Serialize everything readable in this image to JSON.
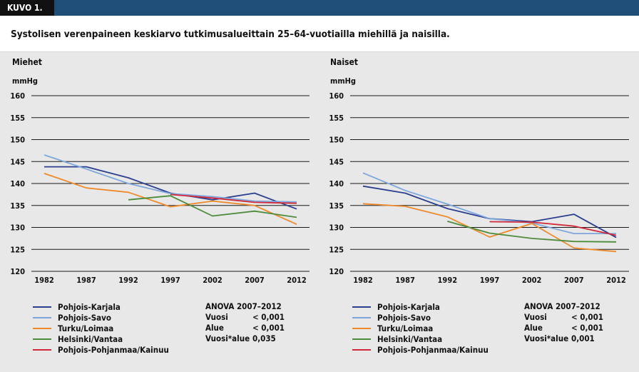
{
  "header": {
    "tag": "KUVO 1.",
    "title": "Systolisen verenpaineen keskiarvo tutkimusalueittain 25–64-vuotiailla miehillä ja naisilla."
  },
  "colors": {
    "header_bar": "#1f4e79",
    "panel_bg": "#e8e8e8",
    "Pohjois-Karjala": "#2b3f8f",
    "Pohjois-Savo": "#7ea6dc",
    "Turku/Loimaa": "#ef8a2b",
    "Helsinki/Vantaa": "#4d8c3b",
    "Pohjois-Pohjanmaa/Kainuu": "#d1283a"
  },
  "chart_data": [
    {
      "type": "line",
      "title": "Miehet",
      "ylabel": "mmHg",
      "ylim": [
        120,
        160
      ],
      "yticks": [
        "120",
        "125",
        "130",
        "135",
        "140",
        "145",
        "150",
        "155",
        "160"
      ],
      "x": [
        "1982",
        "1987",
        "1992",
        "1997",
        "2002",
        "2007",
        "2012"
      ],
      "grid": true,
      "series": [
        {
          "name": "Pohjois-Karjala",
          "values": [
            143.8,
            143.8,
            141.3,
            137.8,
            136.3,
            137.8,
            134.2
          ]
        },
        {
          "name": "Pohjois-Savo",
          "values": [
            146.5,
            143.3,
            140,
            137.7,
            137,
            136,
            135.8
          ]
        },
        {
          "name": "Turku/Loimaa",
          "values": [
            142.3,
            139,
            138,
            134.7,
            136,
            135,
            130.7
          ]
        },
        {
          "name": "Helsinki/Vantaa",
          "values": [
            null,
            null,
            136.3,
            137.2,
            132.6,
            133.7,
            132.3
          ]
        },
        {
          "name": "Pohjois-Pohjanmaa/Kainuu",
          "values": [
            null,
            null,
            null,
            137.5,
            136.7,
            135.7,
            135.5
          ]
        }
      ],
      "legend": [
        "Pohjois-Karjala",
        "Pohjois-Savo",
        "Turku/Loimaa",
        "Helsinki/Vantaa",
        "Pohjois-Pohjanmaa/Kainuu"
      ],
      "anova": {
        "title": "ANOVA 2007–2012",
        "rows": [
          {
            "label": "Vuosi",
            "value": "< 0,001"
          },
          {
            "label": "Alue",
            "value": "< 0,001"
          },
          {
            "label": "Vuosi*alue",
            "value": "0,035"
          }
        ]
      }
    },
    {
      "type": "line",
      "title": "Naiset",
      "ylabel": "mmHg",
      "ylim": [
        120,
        160
      ],
      "yticks": [
        "120",
        "125",
        "130",
        "135",
        "140",
        "145",
        "150",
        "155",
        "160"
      ],
      "x": [
        "1982",
        "1987",
        "1992",
        "1997",
        "2002",
        "2007",
        "2012"
      ],
      "grid": true,
      "series": [
        {
          "name": "Pohjois-Karjala",
          "values": [
            139.4,
            137.8,
            134.3,
            132,
            131.3,
            133,
            127.7
          ]
        },
        {
          "name": "Pohjois-Savo",
          "values": [
            142.4,
            138.4,
            135.3,
            132,
            131,
            128.6,
            128.6
          ]
        },
        {
          "name": "Turku/Loimaa",
          "values": [
            135.4,
            134.8,
            132.4,
            127.8,
            130.9,
            125.3,
            124.5
          ]
        },
        {
          "name": "Helsinki/Vantaa",
          "values": [
            null,
            null,
            131.4,
            128.7,
            127.5,
            126.8,
            126.7
          ]
        },
        {
          "name": "Pohjois-Pohjanmaa/Kainuu",
          "values": [
            null,
            null,
            null,
            131.3,
            131.2,
            130.3,
            128.2
          ]
        }
      ],
      "legend": [
        "Pohjois-Karjala",
        "Pohjois-Savo",
        "Turku/Loimaa",
        "Helsinki/Vantaa",
        "Pohjois-Pohjanmaa/Kainuu"
      ],
      "anova": {
        "title": "ANOVA 2007–2012",
        "rows": [
          {
            "label": "Vuosi",
            "value": "< 0,001"
          },
          {
            "label": "Alue",
            "value": "< 0,001"
          },
          {
            "label": "Vuosi*alue",
            "value": "0,001"
          }
        ]
      }
    }
  ]
}
